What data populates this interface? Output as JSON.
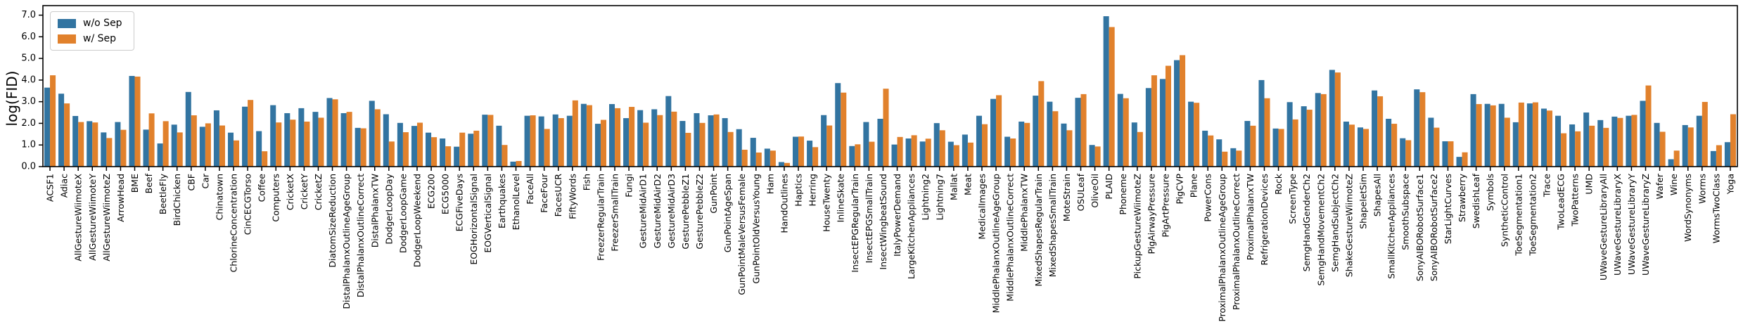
{
  "chart_data": {
    "type": "bar",
    "title": "",
    "xlabel": "",
    "ylabel": "log(FID)",
    "ylim": [
      0,
      7.44
    ],
    "yticks": [
      0,
      1,
      2,
      3,
      4,
      5,
      6,
      7
    ],
    "ytick_labels": [
      "0.0",
      "1.0",
      "2.0",
      "3.0",
      "4.0",
      "5.0",
      "6.0",
      "7.0"
    ],
    "legend_position": "upper left",
    "grid": false,
    "x_tick_rotation": 90,
    "categories": [
      "ACSF1",
      "Adiac",
      "AllGestureWiimoteX",
      "AllGestureWiimoteY",
      "AllGestureWiimoteZ",
      "ArrowHead",
      "BME",
      "Beef",
      "BeetleFly",
      "BirdChicken",
      "CBF",
      "Car",
      "Chinatown",
      "ChlorineConcentration",
      "CinCECGTorso",
      "Coffee",
      "Computers",
      "CricketX",
      "CricketY",
      "CricketZ",
      "DiatomSizeReduction",
      "DistalPhalanxOutlineAgeGroup",
      "DistalPhalanxOutlineCorrect",
      "DistalPhalanxTW",
      "DodgerLoopDay",
      "DodgerLoopGame",
      "DodgerLoopWeekend",
      "ECG200",
      "ECG5000",
      "ECGFiveDays",
      "EOGHorizontalSignal",
      "EOGVerticalSignal",
      "Earthquakes",
      "EthanolLevel",
      "FaceAll",
      "FaceFour",
      "FacesUCR",
      "FiftyWords",
      "Fish",
      "FreezerRegularTrain",
      "FreezerSmallTrain",
      "Fungi",
      "GestureMidAirD1",
      "GestureMidAirD2",
      "GestureMidAirD3",
      "GesturePebbleZ1",
      "GesturePebbleZ2",
      "GunPoint",
      "GunPointAgeSpan",
      "GunPointMaleVersusFemale",
      "GunPointOldVersusYoung",
      "Ham",
      "HandOutlines",
      "Haptics",
      "Herring",
      "HouseTwenty",
      "InlineSkate",
      "InsectEPGRegularTrain",
      "InsectEPGSmallTrain",
      "InsectWingbeatSound",
      "ItalyPowerDemand",
      "LargeKitchenAppliances",
      "Lightning2",
      "Lightning7",
      "Mallat",
      "Meat",
      "MedicalImages",
      "MiddlePhalanxOutlineAgeGroup",
      "MiddlePhalanxOutlineCorrect",
      "MiddlePhalanxTW",
      "MixedShapesRegularTrain",
      "MixedShapesSmallTrain",
      "MoteStrain",
      "OSULeaf",
      "OliveOil",
      "PLAID",
      "Phoneme",
      "PickupGestureWiimoteZ",
      "PigAirwayPressure",
      "PigArtPressure",
      "PigCVP",
      "Plane",
      "PowerCons",
      "ProximalPhalanxOutlineAgeGroup",
      "ProximalPhalanxOutlineCorrect",
      "ProximalPhalanxTW",
      "RefrigerationDevices",
      "Rock",
      "ScreenType",
      "SemgHandGenderCh2",
      "SemgHandMovementCh2",
      "SemgHandSubjectCh2",
      "ShakeGestureWiimoteZ",
      "ShapeletSim",
      "ShapesAll",
      "SmallKitchenAppliances",
      "SmoothSubspace",
      "SonyAIBORobotSurface1",
      "SonyAIBORobotSurface2",
      "StarLightCurves",
      "Strawberry",
      "SwedishLeaf",
      "Symbols",
      "SyntheticControl",
      "ToeSegmentation1",
      "ToeSegmentation2",
      "Trace",
      "TwoLeadECG",
      "TwoPatterns",
      "UMD",
      "UWaveGestureLibraryAll",
      "UWaveGestureLibraryX",
      "UWaveGestureLibraryY",
      "UWaveGestureLibraryZ",
      "Wafer",
      "Wine",
      "WordSynonyms",
      "Worms",
      "WormsTwoClass",
      "Yoga"
    ],
    "series": [
      {
        "name": "w/o Sep",
        "color": "#3274a1",
        "values": [
          3.65,
          3.37,
          2.34,
          2.1,
          1.58,
          2.06,
          4.19,
          1.71,
          1.07,
          1.94,
          3.45,
          1.84,
          2.6,
          1.57,
          2.77,
          1.64,
          2.84,
          2.47,
          2.7,
          2.53,
          3.17,
          2.47,
          1.79,
          3.04,
          2.42,
          2.02,
          1.88,
          1.57,
          1.3,
          0.92,
          1.52,
          2.4,
          1.89,
          0.23,
          2.35,
          2.32,
          2.41,
          2.35,
          2.9,
          1.98,
          2.89,
          2.24,
          2.61,
          2.65,
          3.26,
          2.11,
          2.47,
          2.37,
          2.24,
          1.73,
          1.33,
          0.83,
          0.21,
          1.38,
          1.2,
          2.38,
          3.86,
          0.95,
          2.06,
          2.21,
          1.02,
          1.3,
          1.16,
          2.01,
          1.15,
          1.48,
          2.35,
          3.13,
          1.38,
          2.08,
          3.28,
          3.0,
          1.99,
          3.18,
          1.0,
          6.95,
          3.36,
          2.04,
          3.63,
          4.05,
          4.92,
          3.0,
          1.66,
          1.26,
          0.85,
          2.11,
          4.0,
          1.76,
          2.98,
          2.79,
          3.4,
          4.47,
          2.08,
          1.81,
          3.52,
          2.21,
          1.31,
          3.57,
          2.26,
          1.17,
          0.45,
          3.35,
          2.9,
          2.9,
          2.05,
          2.92,
          2.68,
          2.35,
          1.95,
          2.5,
          2.15,
          2.31,
          2.35,
          3.04,
          2.02,
          0.34,
          1.92,
          2.35,
          0.72,
          1.13
        ]
      },
      {
        "name": "w/ Sep",
        "color": "#e1812c",
        "values": [
          4.22,
          2.92,
          2.06,
          2.04,
          1.32,
          1.7,
          4.16,
          2.46,
          2.1,
          1.58,
          2.37,
          2.0,
          1.9,
          1.21,
          3.08,
          0.71,
          2.04,
          2.17,
          2.08,
          2.26,
          3.11,
          2.53,
          1.77,
          2.65,
          1.16,
          1.59,
          2.03,
          1.36,
          0.94,
          1.57,
          1.66,
          2.39,
          1.0,
          0.26,
          2.37,
          1.74,
          2.24,
          3.06,
          2.84,
          2.16,
          2.7,
          2.76,
          2.03,
          2.38,
          2.54,
          1.56,
          2.02,
          2.41,
          1.6,
          0.78,
          0.65,
          0.74,
          0.17,
          1.39,
          0.9,
          1.9,
          3.42,
          1.03,
          1.15,
          3.6,
          1.37,
          1.45,
          1.29,
          1.68,
          0.99,
          1.11,
          1.96,
          3.3,
          1.3,
          2.02,
          3.95,
          2.56,
          1.68,
          3.35,
          0.93,
          6.45,
          3.16,
          1.6,
          4.22,
          4.66,
          5.15,
          2.95,
          1.44,
          0.69,
          0.74,
          1.89,
          3.16,
          1.74,
          2.18,
          2.63,
          3.35,
          4.35,
          1.94,
          1.74,
          3.25,
          1.98,
          1.22,
          3.44,
          1.8,
          1.17,
          0.66,
          2.89,
          2.83,
          2.26,
          2.96,
          2.97,
          2.59,
          1.54,
          1.63,
          1.89,
          1.79,
          2.25,
          2.39,
          3.75,
          1.61,
          0.74,
          1.81,
          2.99,
          0.99,
          2.42
        ]
      }
    ]
  },
  "legend": {
    "items": [
      {
        "label": "w/o Sep"
      },
      {
        "label": "w/ Sep"
      }
    ]
  }
}
